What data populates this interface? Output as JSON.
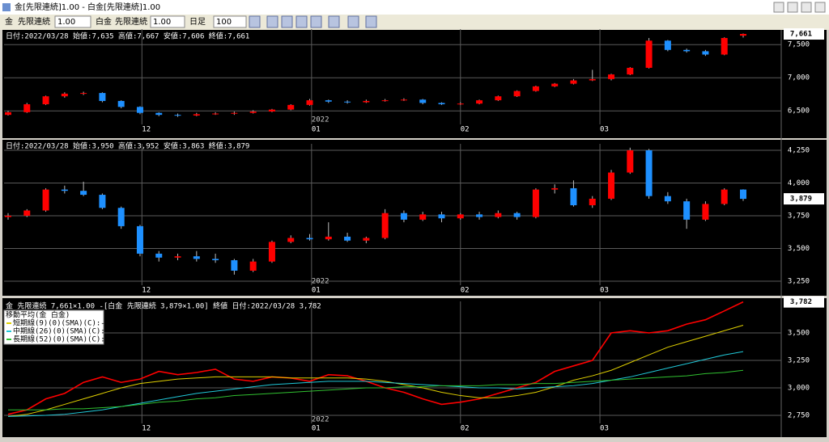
{
  "window": {
    "title": "金[先限連続]1.00 - 白金[先限連続]1.00"
  },
  "toolbar": {
    "item1": "金",
    "kind1": "先限連続",
    "mult1": "1.00",
    "item2": "白金",
    "kind2": "先限連続",
    "mult2": "1.00",
    "period": "日足",
    "count": "100"
  },
  "chart_data": [
    {
      "type": "candlestick",
      "header": "日付:2022/03/28 始値:7,635 高値:7,667 安値:7,606 終値:7,661",
      "open": [
        6440,
        6480,
        6600,
        6720,
        6760,
        6770,
        6650,
        6560,
        6470,
        6440,
        6430,
        6450,
        6460,
        6470,
        6490,
        6520,
        6590,
        6660,
        6640,
        6630,
        6650,
        6660,
        6670,
        6620,
        6600,
        6610,
        6660,
        6720,
        6800,
        6870,
        6910,
        6960,
        6980,
        7050,
        7150,
        7560,
        7420,
        7400,
        7350,
        7635
      ],
      "high": [
        6500,
        6620,
        6730,
        6780,
        6790,
        6780,
        6660,
        6570,
        6480,
        6460,
        6470,
        6480,
        6490,
        6510,
        6530,
        6600,
        6680,
        6670,
        6660,
        6670,
        6680,
        6690,
        6680,
        6630,
        6630,
        6670,
        6730,
        6810,
        6880,
        6920,
        6980,
        7120,
        7060,
        7160,
        7600,
        7570,
        7440,
        7420,
        7610,
        7667
      ],
      "low": [
        6430,
        6470,
        6590,
        6700,
        6740,
        6630,
        6540,
        6450,
        6420,
        6410,
        6420,
        6440,
        6440,
        6460,
        6480,
        6510,
        6580,
        6620,
        6610,
        6620,
        6640,
        6650,
        6600,
        6590,
        6590,
        6600,
        6650,
        6710,
        6790,
        6860,
        6900,
        6950,
        6960,
        7040,
        7140,
        7400,
        7380,
        7330,
        7340,
        7606
      ],
      "close": [
        6480,
        6600,
        6720,
        6760,
        6770,
        6650,
        6560,
        6470,
        6440,
        6430,
        6450,
        6460,
        6470,
        6490,
        6520,
        6590,
        6660,
        6640,
        6630,
        6650,
        6660,
        6670,
        6620,
        6600,
        6610,
        6660,
        6720,
        6800,
        6870,
        6910,
        6960,
        6980,
        7050,
        7150,
        7560,
        7420,
        7400,
        7350,
        7600,
        7661
      ],
      "up_color": "#ff0000",
      "down_color": "#1e90ff",
      "ylim": [
        6320,
        7710
      ],
      "yticks": [
        {
          "value": 6500,
          "label": "6,500"
        },
        {
          "value": 7000,
          "label": "7,000"
        },
        {
          "value": 7500,
          "label": "7,500"
        }
      ],
      "xlim": [
        0,
        39
      ],
      "xticks": [
        {
          "value": 7.1,
          "label": "12"
        },
        {
          "value": 16.1,
          "label": "01"
        },
        {
          "value": 24,
          "label": "02"
        },
        {
          "value": 31.4,
          "label": "03"
        }
      ],
      "year_label": "2022",
      "last_value_label": "7,661"
    },
    {
      "type": "candlestick",
      "header": "日付:2022/03/28 始値:3,950 高値:3,952 安値:3,863 終値:3,879",
      "open": [
        3740,
        3750,
        3790,
        3950,
        3940,
        3910,
        3810,
        3670,
        3460,
        3430,
        3440,
        3420,
        3410,
        3330,
        3400,
        3550,
        3580,
        3570,
        3590,
        3560,
        3580,
        3770,
        3720,
        3760,
        3730,
        3760,
        3740,
        3770,
        3740,
        3950,
        3960,
        3830,
        3880,
        4080,
        4250,
        3900,
        3860,
        3720,
        3840,
        3950
      ],
      "high": [
        3770,
        3800,
        3960,
        3980,
        4010,
        3920,
        3820,
        3680,
        3480,
        3460,
        3480,
        3460,
        3420,
        3420,
        3560,
        3600,
        3610,
        3700,
        3620,
        3590,
        3800,
        3790,
        3780,
        3780,
        3770,
        3780,
        3790,
        3780,
        3960,
        3990,
        4020,
        3900,
        4100,
        4270,
        4260,
        3930,
        3880,
        3860,
        3960,
        3952
      ],
      "low": [
        3720,
        3740,
        3780,
        3920,
        3900,
        3800,
        3650,
        3440,
        3400,
        3410,
        3400,
        3390,
        3300,
        3320,
        3390,
        3540,
        3560,
        3560,
        3550,
        3540,
        3570,
        3700,
        3710,
        3700,
        3720,
        3720,
        3730,
        3720,
        3730,
        3920,
        3820,
        3810,
        3870,
        4070,
        3880,
        3840,
        3650,
        3710,
        3830,
        3863
      ],
      "close": [
        3750,
        3790,
        3950,
        3940,
        3910,
        3810,
        3670,
        3460,
        3430,
        3440,
        3420,
        3410,
        3330,
        3400,
        3550,
        3580,
        3570,
        3590,
        3560,
        3580,
        3770,
        3720,
        3760,
        3730,
        3760,
        3740,
        3770,
        3740,
        3950,
        3960,
        3830,
        3880,
        4080,
        4250,
        3900,
        3860,
        3720,
        3840,
        3950,
        3879
      ],
      "up_color": "#ff0000",
      "down_color": "#1e90ff",
      "ylim": [
        3225,
        4287
      ],
      "yticks": [
        {
          "value": 3250,
          "label": "3,250"
        },
        {
          "value": 3500,
          "label": "3,500"
        },
        {
          "value": 3750,
          "label": "3,750"
        },
        {
          "value": 4000,
          "label": "4,000"
        },
        {
          "value": 4250,
          "label": "4,250"
        }
      ],
      "xlim": [
        0,
        39
      ],
      "xticks": [
        {
          "value": 7.1,
          "label": "12"
        },
        {
          "value": 16.1,
          "label": "01"
        },
        {
          "value": 24,
          "label": "02"
        },
        {
          "value": 31.4,
          "label": "03"
        }
      ],
      "year_label": "2022",
      "last_value_label": "3,879"
    },
    {
      "type": "line",
      "header": "金 先限連続 7,661×1.00 -[白金 先限連続 3,879×1.00] 終値 日付:2022/03/28 3,782",
      "legend_title": "移動平均(金 白金)",
      "series": [
        {
          "color": "#ff0000",
          "values": [
            2760,
            2800,
            2900,
            2950,
            3050,
            3100,
            3050,
            3080,
            3150,
            3120,
            3140,
            3170,
            3080,
            3060,
            3100,
            3090,
            3060,
            3120,
            3110,
            3060,
            3000,
            2960,
            2900,
            2850,
            2870,
            2900,
            2950,
            3000,
            3050,
            3150,
            3200,
            3250,
            3500,
            3520,
            3500,
            3520,
            3580,
            3620,
            3700,
            3782
          ]
        },
        {
          "name": "短期線(9)(0)(SMA)(C):----",
          "color": "#e0d000",
          "values": [
            2740,
            2760,
            2800,
            2850,
            2900,
            2950,
            3000,
            3040,
            3060,
            3080,
            3090,
            3100,
            3100,
            3100,
            3100,
            3090,
            3090,
            3090,
            3090,
            3080,
            3060,
            3030,
            3000,
            2960,
            2930,
            2910,
            2910,
            2930,
            2960,
            3010,
            3070,
            3110,
            3160,
            3230,
            3300,
            3370,
            3420,
            3470,
            3520,
            3570
          ]
        },
        {
          "name": "中期線(26)(0)(SMA)(C):----",
          "color": "#20c8d8",
          "values": [
            2740,
            2745,
            2750,
            2760,
            2780,
            2800,
            2830,
            2860,
            2890,
            2920,
            2950,
            2970,
            2990,
            3010,
            3030,
            3040,
            3050,
            3060,
            3060,
            3060,
            3050,
            3040,
            3030,
            3020,
            3010,
            3000,
            3000,
            2990,
            3000,
            3010,
            3020,
            3040,
            3070,
            3100,
            3140,
            3180,
            3220,
            3260,
            3300,
            3330
          ]
        },
        {
          "name": "長期線(52)(0)(SMA)(C):----",
          "color": "#30c030",
          "values": [
            2800,
            2800,
            2800,
            2810,
            2810,
            2820,
            2830,
            2850,
            2870,
            2880,
            2900,
            2910,
            2930,
            2940,
            2950,
            2960,
            2970,
            2980,
            2990,
            3000,
            3000,
            3010,
            3010,
            3020,
            3020,
            3020,
            3030,
            3030,
            3040,
            3040,
            3050,
            3060,
            3070,
            3080,
            3090,
            3100,
            3110,
            3130,
            3140,
            3160
          ]
        }
      ],
      "ylim": [
        2596,
        3772
      ],
      "yticks": [
        {
          "value": 2750,
          "label": "2,750"
        },
        {
          "value": 3000,
          "label": "3,000"
        },
        {
          "value": 3250,
          "label": "3,250"
        },
        {
          "value": 3500,
          "label": "3,500"
        }
      ],
      "xlim": [
        0,
        39
      ],
      "xticks": [
        {
          "value": 7.1,
          "label": "12"
        },
        {
          "value": 16.1,
          "label": "01"
        },
        {
          "value": 24,
          "label": "02"
        },
        {
          "value": 31.4,
          "label": "03"
        }
      ],
      "year_label": "2022",
      "last_value_label": "3,782"
    }
  ]
}
